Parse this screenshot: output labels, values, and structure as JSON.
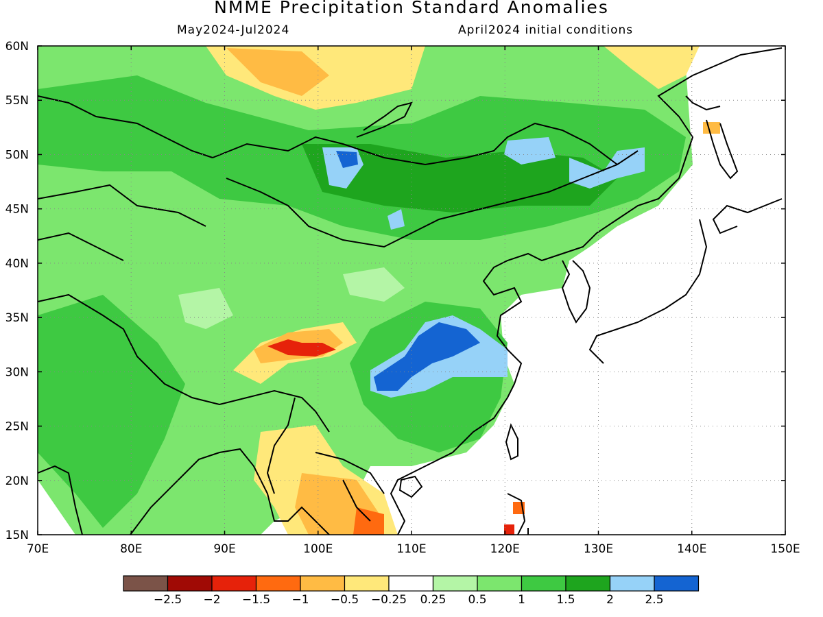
{
  "title": "NMME Precipitation Standard Anomalies",
  "subtitle_left": "May2024-Jul2024",
  "subtitle_right": "April2024 initial conditions",
  "lon_labels": [
    "70E",
    "80E",
    "90E",
    "100E",
    "110E",
    "120E",
    "130E",
    "140E",
    "150E"
  ],
  "lat_labels": [
    "15N",
    "20N",
    "25N",
    "30N",
    "35N",
    "40N",
    "45N",
    "50N",
    "55N",
    "60N"
  ],
  "legend": {
    "colors": [
      "#7b5348",
      "#a00a05",
      "#e6220a",
      "#ff6a10",
      "#ffbb44",
      "#ffe87a",
      "#ffffff",
      "#b4f5a6",
      "#7ce66e",
      "#3ec942",
      "#1ea51e",
      "#96d2f8",
      "#1464d2"
    ],
    "labels": [
      "-2.5",
      "-2",
      "-1.5",
      "-1",
      "-0.5",
      "-0.25",
      "0.25",
      "0.5",
      "1",
      "1.5",
      "2",
      "2.5"
    ]
  },
  "palette": {
    "lightgreen": "#b4f5a6",
    "green": "#7ce66e",
    "midgreen": "#3ec942",
    "darkgreen": "#1ea51e",
    "lightblue": "#96d2f8",
    "blue": "#1464d2",
    "yellow": "#ffe87a",
    "orange": "#ffbb44",
    "darkorange": "#ff6a10",
    "red": "#e6220a",
    "darkred": "#a00a05"
  }
}
